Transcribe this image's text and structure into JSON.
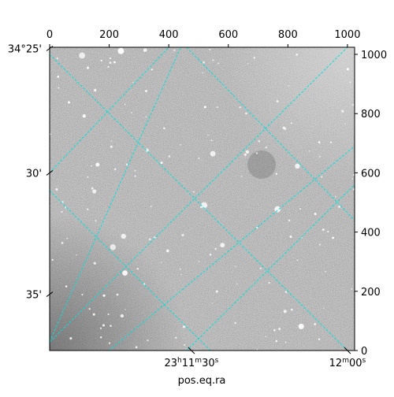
{
  "chart_data": {
    "type": "image",
    "xlabel": "pos.eq.ra",
    "ylabel": "",
    "pixel_axes": {
      "x_ticks": [
        0,
        200,
        400,
        600,
        800,
        1000
      ],
      "y_ticks": [
        0,
        200,
        400,
        600,
        800,
        1000
      ],
      "xlim": [
        0,
        1024
      ],
      "ylim": [
        0,
        1024
      ]
    },
    "world_axes": {
      "ra_ticks": [
        {
          "label_h": "23",
          "label_m": "11",
          "label_s": "30",
          "x": 476,
          "y": 0
        },
        {
          "label_h": "",
          "label_m": "12",
          "label_s": "00",
          "x": 1000,
          "y": 0
        }
      ],
      "dec_ticks": [
        {
          "label": "34°25'",
          "x": 0,
          "y": 1020
        },
        {
          "label": "30'",
          "x": 0,
          "y": 600
        },
        {
          "label": "35'",
          "x": 0,
          "y": 190
        }
      ]
    },
    "grid": true,
    "grid_color": "#00e0e0",
    "image_colormap": "gray"
  }
}
